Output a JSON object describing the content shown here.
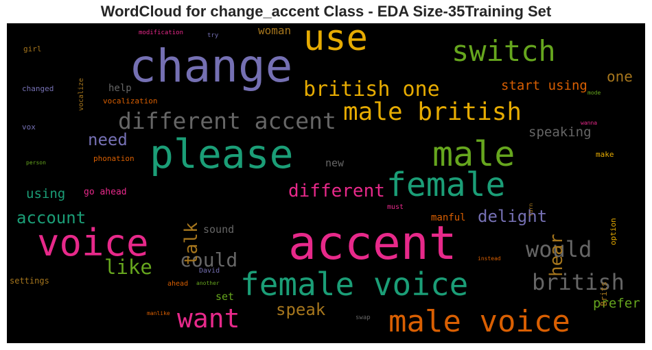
{
  "title": "WordCloud for change_accent Class - EDA Size-35Training Set",
  "colors": {
    "purple": "#7570b3",
    "teal": "#1b9e77",
    "green": "#66a61e",
    "orange": "#d95f02",
    "magenta": "#e7298a",
    "gold": "#e6ab02",
    "brown": "#a6761d",
    "gray": "#666666"
  },
  "words": [
    {
      "text": "change",
      "color": "purple"
    },
    {
      "text": "use",
      "color": "gold"
    },
    {
      "text": "switch",
      "color": "green"
    },
    {
      "text": "british one",
      "color": "gold"
    },
    {
      "text": "male british",
      "color": "gold"
    },
    {
      "text": "different accent",
      "color": "gray"
    },
    {
      "text": "please",
      "color": "teal"
    },
    {
      "text": "male",
      "color": "green"
    },
    {
      "text": "female",
      "color": "teal"
    },
    {
      "text": "accent",
      "color": "magenta"
    },
    {
      "text": "voice",
      "color": "magenta"
    },
    {
      "text": "female voice",
      "color": "teal"
    },
    {
      "text": "male voice",
      "color": "orange"
    },
    {
      "text": "want",
      "color": "magenta"
    },
    {
      "text": "british",
      "color": "gray"
    },
    {
      "text": "would",
      "color": "gray"
    },
    {
      "text": "could",
      "color": "gray"
    },
    {
      "text": "like",
      "color": "green"
    },
    {
      "text": "talk",
      "color": "brown"
    },
    {
      "text": "hear",
      "color": "brown"
    },
    {
      "text": "different",
      "color": "magenta"
    },
    {
      "text": "delight",
      "color": "purple"
    },
    {
      "text": "account",
      "color": "teal"
    },
    {
      "text": "need",
      "color": "purple"
    },
    {
      "text": "speak",
      "color": "brown"
    },
    {
      "text": "start using",
      "color": "orange"
    },
    {
      "text": "one",
      "color": "brown"
    },
    {
      "text": "speaking",
      "color": "gray"
    },
    {
      "text": "woman",
      "color": "brown"
    },
    {
      "text": "using",
      "color": "teal"
    },
    {
      "text": "prefer",
      "color": "green"
    },
    {
      "text": "help",
      "color": "gray"
    },
    {
      "text": "new",
      "color": "gray"
    },
    {
      "text": "sound",
      "color": "gray"
    },
    {
      "text": "go ahead",
      "color": "magenta"
    },
    {
      "text": "set",
      "color": "green"
    },
    {
      "text": "manful",
      "color": "orange"
    },
    {
      "text": "vocalization",
      "color": "orange"
    },
    {
      "text": "changed",
      "color": "purple"
    },
    {
      "text": "girl",
      "color": "brown"
    },
    {
      "text": "vox",
      "color": "purple"
    },
    {
      "text": "phonation",
      "color": "orange"
    },
    {
      "text": "settings",
      "color": "brown"
    },
    {
      "text": "make",
      "color": "gold"
    },
    {
      "text": "modification",
      "color": "magenta"
    },
    {
      "text": "try",
      "color": "purple"
    },
    {
      "text": "vocalize",
      "color": "brown"
    },
    {
      "text": "person",
      "color": "green"
    },
    {
      "text": "must",
      "color": "magenta"
    },
    {
      "text": "David",
      "color": "purple"
    },
    {
      "text": "ahead",
      "color": "orange"
    },
    {
      "text": "another",
      "color": "green"
    },
    {
      "text": "manlike",
      "color": "orange"
    },
    {
      "text": "swap",
      "color": "gray"
    },
    {
      "text": "instead",
      "color": "orange"
    },
    {
      "text": "Brits",
      "color": "brown"
    },
    {
      "text": "option",
      "color": "gold"
    },
    {
      "text": "turn",
      "color": "brown"
    },
    {
      "text": "mode",
      "color": "green"
    },
    {
      "text": "wanna",
      "color": "magenta"
    }
  ]
}
